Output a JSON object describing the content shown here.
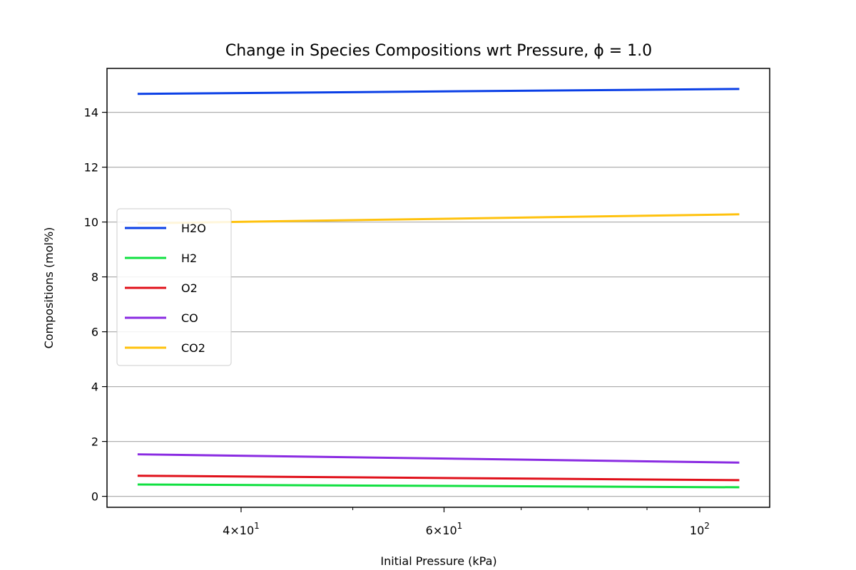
{
  "chart_data": {
    "type": "line",
    "title": "Change in Species Compositions wrt Pressure, ϕ = 1.0",
    "xlabel": "Initial Pressure (kPa)",
    "ylabel": "Compositions (mol%)",
    "xscale": "log",
    "xlim": [
      30.6,
      115
    ],
    "ylim": [
      -0.4,
      15.6
    ],
    "x_major_ticks": [
      {
        "value": 40,
        "label_base": "4",
        "label_exp": "1",
        "label_kind": "mult"
      },
      {
        "value": 60,
        "label_base": "6",
        "label_exp": "1",
        "label_kind": "mult"
      },
      {
        "value": 100,
        "label_base": "10",
        "label_exp": "2",
        "label_kind": "pow"
      }
    ],
    "x_minor_ticks": [
      50,
      70,
      80,
      90
    ],
    "y_ticks": [
      0,
      2,
      4,
      6,
      8,
      10,
      12,
      14
    ],
    "grid": "horizontal",
    "legend_position": "center-left",
    "series": [
      {
        "name": "H2O",
        "color": "#0a3fe6",
        "x": [
          32.6,
          108
        ],
        "y": [
          14.67,
          14.85
        ]
      },
      {
        "name": "H2",
        "color": "#10e040",
        "x": [
          32.6,
          108
        ],
        "y": [
          0.43,
          0.33
        ]
      },
      {
        "name": "O2",
        "color": "#e0101a",
        "x": [
          32.6,
          108
        ],
        "y": [
          0.75,
          0.59
        ]
      },
      {
        "name": "CO",
        "color": "#8a2be2",
        "x": [
          32.6,
          108
        ],
        "y": [
          1.53,
          1.23
        ]
      },
      {
        "name": "CO2",
        "color": "#ffc20e",
        "x": [
          32.6,
          108
        ],
        "y": [
          9.95,
          10.28
        ]
      }
    ]
  }
}
